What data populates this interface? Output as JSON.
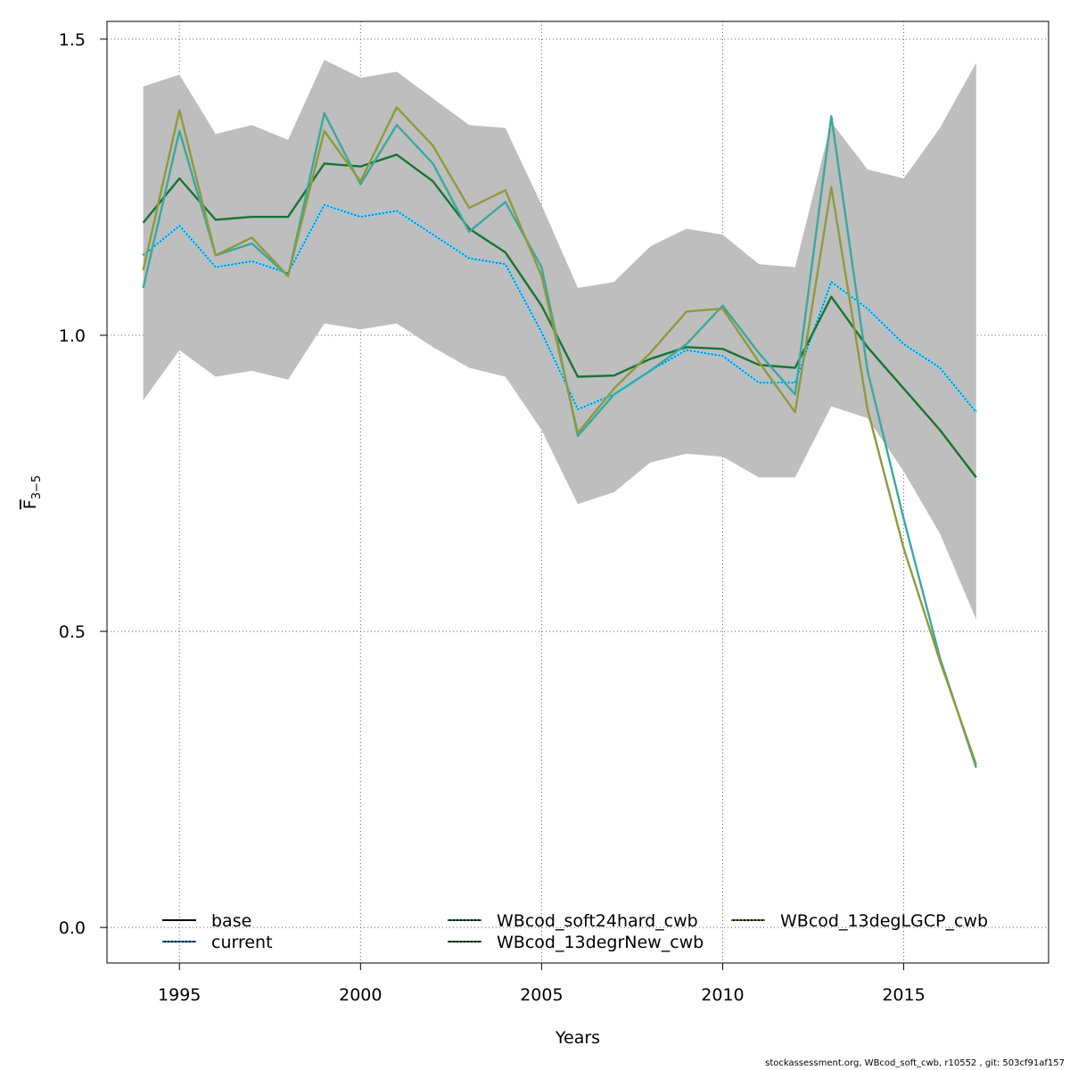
{
  "chart_data": {
    "type": "line",
    "xlabel": "Years",
    "ylabel_main": "F",
    "ylabel_sub": "3−5",
    "xlim": [
      1993,
      2019
    ],
    "ylim": [
      -0.06,
      1.53
    ],
    "x_ticks": [
      1995,
      2000,
      2005,
      2010,
      2015
    ],
    "y_ticks": [
      0.0,
      0.5,
      1.0,
      1.5
    ],
    "y_tick_labels": [
      "0.0",
      "0.5",
      "1.0",
      "1.5"
    ],
    "grid": true,
    "legend_placement": "bottom",
    "x": [
      1994,
      1995,
      1996,
      1997,
      1998,
      1999,
      2000,
      2001,
      2002,
      2003,
      2004,
      2005,
      2006,
      2007,
      2008,
      2009,
      2010,
      2011,
      2012,
      2013,
      2014,
      2015,
      2016,
      2017
    ],
    "confidence_band": {
      "color": "#bebebe",
      "upper": [
        1.42,
        1.44,
        1.34,
        1.355,
        1.33,
        1.465,
        1.435,
        1.445,
        1.4,
        1.355,
        1.35,
        1.22,
        1.08,
        1.09,
        1.15,
        1.18,
        1.17,
        1.12,
        1.115,
        1.36,
        1.28,
        1.265,
        1.35,
        1.46
      ],
      "lower": [
        0.89,
        0.975,
        0.93,
        0.94,
        0.925,
        1.02,
        1.01,
        1.02,
        0.98,
        0.945,
        0.93,
        0.84,
        0.715,
        0.735,
        0.785,
        0.8,
        0.795,
        0.76,
        0.76,
        0.88,
        0.86,
        0.77,
        0.665,
        0.52
      ]
    },
    "series": [
      {
        "name": "base",
        "color": "#000000",
        "line": "solid",
        "values": [
          1.135,
          1.185,
          1.115,
          1.125,
          1.105,
          1.22,
          1.2,
          1.21,
          1.17,
          1.13,
          1.12,
          1.005,
          0.875,
          0.9,
          0.94,
          0.975,
          0.965,
          0.92,
          0.92,
          1.09,
          1.045,
          0.985,
          0.945,
          0.87
        ]
      },
      {
        "name": "current",
        "color": "#0072b2",
        "line": "dotted",
        "values": [
          1.135,
          1.185,
          1.115,
          1.125,
          1.105,
          1.22,
          1.2,
          1.21,
          1.17,
          1.13,
          1.12,
          1.005,
          0.875,
          0.9,
          0.94,
          0.975,
          0.965,
          0.92,
          0.92,
          1.09,
          1.045,
          0.985,
          0.945,
          0.87
        ]
      },
      {
        "name": "WBcod_soft24hard_cwb",
        "color": "#3aa89e",
        "line": "solid",
        "values": [
          1.08,
          1.345,
          1.135,
          1.155,
          1.1,
          1.375,
          1.255,
          1.355,
          1.29,
          1.175,
          1.225,
          1.115,
          0.83,
          0.9,
          0.94,
          0.985,
          1.05,
          0.97,
          0.9,
          1.37,
          0.94,
          0.69,
          0.455,
          0.27
        ]
      },
      {
        "name": "WBcod_13degrNew_cwb",
        "color": "#177532",
        "line": "solid",
        "values": [
          1.19,
          1.265,
          1.195,
          1.2,
          1.2,
          1.29,
          1.285,
          1.305,
          1.26,
          1.18,
          1.14,
          1.05,
          0.93,
          0.932,
          0.96,
          0.98,
          0.977,
          0.95,
          0.945,
          1.065,
          0.98,
          0.91,
          0.84,
          0.76
        ]
      },
      {
        "name": "WBcod_13degLGCP_cwb",
        "color": "#8e9a3a",
        "line": "solid",
        "values": [
          1.11,
          1.38,
          1.135,
          1.165,
          1.1,
          1.345,
          1.26,
          1.385,
          1.32,
          1.215,
          1.245,
          1.1,
          0.835,
          0.91,
          0.97,
          1.04,
          1.045,
          0.955,
          0.87,
          1.25,
          0.875,
          0.64,
          0.45,
          0.275
        ]
      }
    ],
    "legend_entries": [
      {
        "label": "base",
        "color": "#000000",
        "line": "solid"
      },
      {
        "label": "current",
        "color": "#0072b2",
        "line": "dotted"
      },
      {
        "label": "WBcod_soft24hard_cwb",
        "color": "#0f6b66",
        "line": "dotted"
      },
      {
        "label": "WBcod_13degrNew_cwb",
        "color": "#0d5d2a",
        "line": "dotted"
      },
      {
        "label": "WBcod_13degLGCP_cwb",
        "color": "#6b6f1d",
        "line": "dotted"
      }
    ]
  },
  "footer": "stockassessment.org, WBcod_soft_cwb, r10552 , git: 503cf91af157"
}
